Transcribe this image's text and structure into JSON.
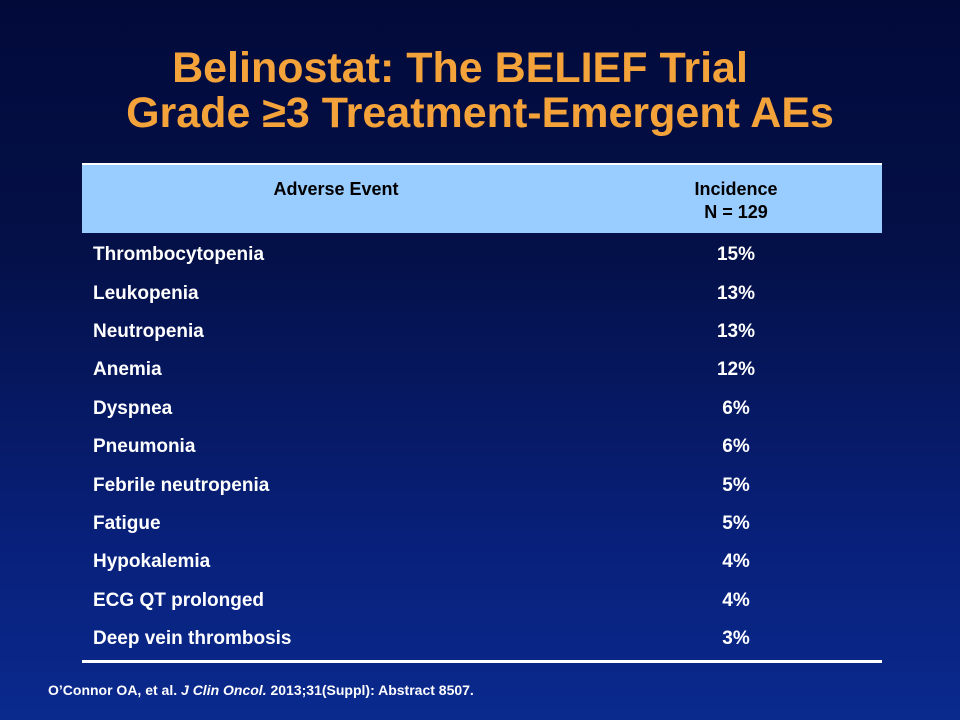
{
  "slide": {
    "title_line1": "Belinostat: The BELIEF Trial",
    "title_line2": "Grade ≥3 Treatment-Emergent AEs"
  },
  "table": {
    "header": {
      "event": "Adverse Event",
      "incidence": "Incidence",
      "n_label": "N = 129"
    },
    "rows": [
      {
        "event": "Thrombocytopenia",
        "value": "15%"
      },
      {
        "event": "Leukopenia",
        "value": "13%"
      },
      {
        "event": "Neutropenia",
        "value": "13%"
      },
      {
        "event": "Anemia",
        "value": "12%"
      },
      {
        "event": "Dyspnea",
        "value": "6%"
      },
      {
        "event": "Pneumonia",
        "value": "6%"
      },
      {
        "event": "Febrile neutropenia",
        "value": "5%"
      },
      {
        "event": "Fatigue",
        "value": "5%"
      },
      {
        "event": "Hypokalemia",
        "value": "4%"
      },
      {
        "event": "ECG QT prolonged",
        "value": "4%"
      },
      {
        "event": "Deep vein thrombosis",
        "value": "3%"
      }
    ]
  },
  "citation": {
    "authors": "O’Connor OA, et al. ",
    "journal": "J Clin Oncol.",
    "details": " 2013;31(Suppl): Abstract 8507."
  },
  "colors": {
    "title": "#f4a23a",
    "header_bg": "#99ccff",
    "background_top": "#020a3a",
    "background_bottom": "#0a2a8e"
  }
}
